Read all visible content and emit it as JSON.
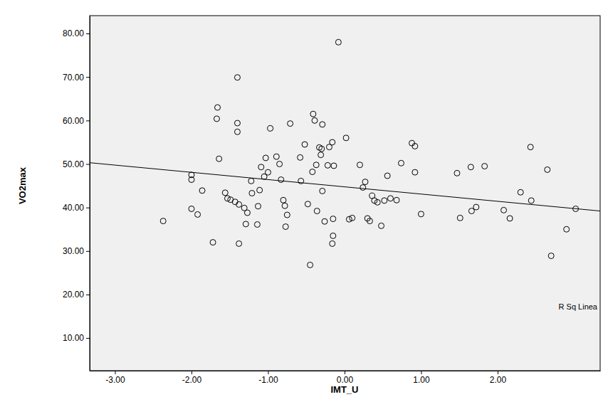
{
  "chart_data": {
    "type": "scatter",
    "x_label": "IMT_U",
    "y_label": "VO2max",
    "marker": "open-circle",
    "color": "#000000",
    "x": [
      -2.37,
      -2.0,
      -2.0,
      -2.0,
      -1.92,
      -1.86,
      -1.72,
      -1.66,
      -1.67,
      -1.64,
      -1.56,
      -1.53,
      -1.49,
      -1.43,
      -1.38,
      -1.4,
      -1.4,
      -1.4,
      -1.38,
      -1.31,
      -1.29,
      -1.27,
      -1.21,
      -1.22,
      -1.14,
      -1.13,
      -1.11,
      -1.09,
      -1.05,
      -1.03,
      -1.0,
      -0.97,
      -0.89,
      -0.85,
      -0.83,
      -0.8,
      -0.78,
      -0.77,
      -0.75,
      -0.71,
      -0.57,
      -0.58,
      -0.52,
      -0.48,
      -0.45,
      -0.42,
      -0.41,
      -0.39,
      -0.37,
      -0.36,
      -0.33,
      -0.3,
      -0.31,
      -0.29,
      -0.29,
      -0.26,
      -0.22,
      -0.2,
      -0.16,
      -0.14,
      -0.15,
      -0.15,
      -0.16,
      -0.08,
      0.02,
      0.06,
      0.1,
      0.2,
      0.24,
      0.27,
      0.3,
      0.33,
      0.36,
      0.39,
      0.43,
      0.48,
      0.52,
      0.56,
      0.6,
      0.68,
      0.74,
      0.88,
      0.92,
      0.92,
      1.0,
      1.47,
      1.51,
      1.65,
      1.66,
      1.72,
      1.83,
      2.08,
      2.16,
      2.3,
      2.43,
      2.44,
      2.65,
      2.7,
      2.9,
      3.02
    ],
    "values": [
      36.9,
      47.5,
      46.4,
      39.7,
      38.4,
      43.9,
      32.0,
      63.0,
      60.4,
      51.2,
      43.4,
      42.1,
      41.8,
      41.3,
      40.7,
      69.9,
      59.4,
      57.4,
      31.7,
      39.9,
      36.2,
      38.8,
      43.3,
      46.1,
      36.1,
      40.3,
      44.0,
      49.3,
      47.1,
      51.4,
      48.1,
      58.2,
      51.7,
      50.0,
      46.4,
      41.7,
      40.4,
      35.6,
      38.3,
      59.3,
      46.1,
      51.5,
      54.5,
      40.8,
      26.8,
      48.2,
      61.5,
      60.0,
      49.8,
      39.2,
      53.8,
      53.5,
      52.1,
      59.1,
      43.8,
      36.8,
      49.7,
      53.9,
      55.0,
      49.6,
      37.4,
      33.5,
      31.7,
      78.0,
      56.0,
      37.3,
      37.6,
      49.8,
      44.6,
      45.9,
      37.5,
      36.9,
      42.7,
      41.6,
      41.2,
      35.8,
      41.6,
      47.3,
      42.1,
      41.7,
      50.2,
      54.8,
      54.1,
      48.1,
      38.5,
      47.9,
      37.6,
      49.3,
      39.2,
      40.1,
      49.5,
      39.4,
      37.5,
      43.5,
      53.9,
      41.6,
      48.7,
      28.9,
      35.0,
      39.7
    ],
    "fit_line": {
      "x": [
        -3.33,
        3.34
      ],
      "values": [
        50.3,
        39.2
      ]
    },
    "annotations": [
      "R Sq Linea"
    ],
    "xlim": [
      -3.33,
      3.34
    ],
    "ylim": [
      2.5,
      84.1
    ],
    "xticks": [
      {
        "value": -3,
        "label": "-3.00"
      },
      {
        "value": -2,
        "label": "-2.00"
      },
      {
        "value": -1,
        "label": "-1.00"
      },
      {
        "value": 0,
        "label": "0.00"
      },
      {
        "value": 1,
        "label": "1.00"
      },
      {
        "value": 2,
        "label": "2.00"
      }
    ],
    "yticks": [
      {
        "value": 10,
        "label": "10.00"
      },
      {
        "value": 20,
        "label": "20.00"
      },
      {
        "value": 30,
        "label": "30.00"
      },
      {
        "value": 40,
        "label": "40.00"
      },
      {
        "value": 50,
        "label": "50.00"
      },
      {
        "value": 60,
        "label": "60.00"
      },
      {
        "value": 70,
        "label": "70.00"
      },
      {
        "value": 80,
        "label": "80.00"
      }
    ]
  }
}
